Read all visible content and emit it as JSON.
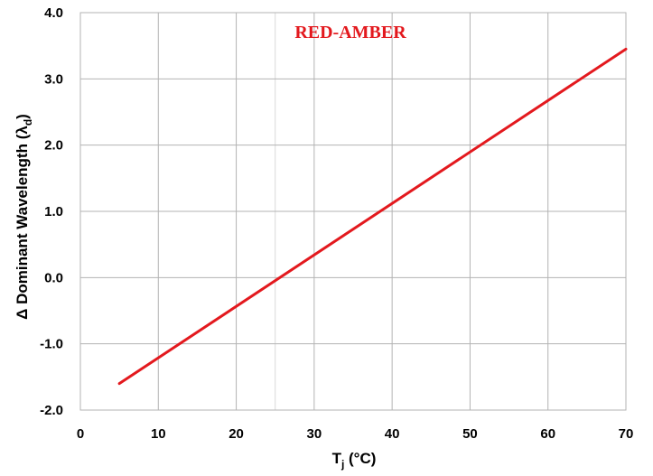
{
  "chart_data": {
    "type": "line",
    "title": "RED-AMBER",
    "xlabel": {
      "main": "T",
      "sub": "j",
      "unit": " (°C)"
    },
    "ylabel": {
      "main": "Δ Dominant Wavelength (λ",
      "sub": "d",
      "close": ")"
    },
    "xlim": [
      0,
      70
    ],
    "ylim": [
      -2.0,
      4.0
    ],
    "x_ticks": [
      0,
      10,
      20,
      30,
      40,
      50,
      60,
      70
    ],
    "x_tick_labels": [
      "0",
      "10",
      "20",
      "30",
      "40",
      "50",
      "60",
      "70"
    ],
    "y_ticks": [
      -2.0,
      -1.0,
      0.0,
      1.0,
      2.0,
      3.0,
      4.0
    ],
    "y_tick_labels": [
      "-2.0",
      "-1.0",
      "0.0",
      "1.0",
      "2.0",
      "3.0",
      "4.0"
    ],
    "grid": true,
    "legend": "none",
    "colors": {
      "line": "#e3191e",
      "title": "#e3191e",
      "grid": "#b3b3b3"
    },
    "series": [
      {
        "x": [
          5,
          70
        ],
        "y": [
          -1.6,
          3.45
        ]
      }
    ]
  }
}
